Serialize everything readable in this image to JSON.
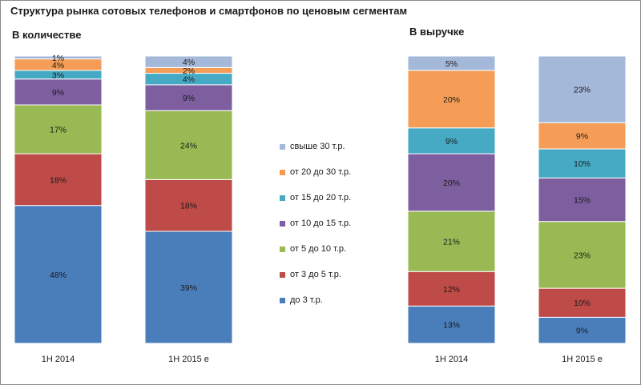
{
  "title": "Структура рынка сотовых телефонов и смартфонов по ценовым сегментам",
  "chart_data": {
    "type": "bar",
    "stacked": true,
    "segments": [
      {
        "name": "до 3 т.р.",
        "color": "#4a7ebb"
      },
      {
        "name": "от 3 до 5 т.р.",
        "color": "#be4b48"
      },
      {
        "name": "от 5 до 10 т.р.",
        "color": "#98b954"
      },
      {
        "name": "от 10 до 15 т.р.",
        "color": "#7d5fa0"
      },
      {
        "name": "от 15 до 20 т.р.",
        "color": "#46aac5"
      },
      {
        "name": "от 20 до 30 т.р.",
        "color": "#f59d56"
      },
      {
        "name": "свыше 30 т.р.",
        "color": "#a4b8d9"
      }
    ],
    "panels": [
      {
        "subtitle": "В количестве",
        "categories": [
          "1H 2014",
          "1H 2015 e"
        ],
        "series": [
          {
            "name": "до 3 т.р.",
            "values": [
              48,
              39
            ],
            "labels": [
              "48%",
              "39%"
            ]
          },
          {
            "name": "от 3 до 5 т.р.",
            "values": [
              18,
              18
            ],
            "labels": [
              "18%",
              "18%"
            ]
          },
          {
            "name": "от 5 до 10 т.р.",
            "values": [
              17,
              24
            ],
            "labels": [
              "17%",
              "24%"
            ]
          },
          {
            "name": "от 10 до 15 т.р.",
            "values": [
              9,
              9
            ],
            "labels": [
              "9%",
              "9%"
            ]
          },
          {
            "name": "от 15 до 20 т.р.",
            "values": [
              3,
              4
            ],
            "labels": [
              "3%",
              "4%"
            ]
          },
          {
            "name": "от 20 до 30 т.р.",
            "values": [
              4,
              2
            ],
            "labels": [
              "4%",
              "2%"
            ]
          },
          {
            "name": "свыше 30 т.р.",
            "values": [
              1,
              4
            ],
            "labels": [
              "1%",
              "4%"
            ]
          }
        ]
      },
      {
        "subtitle": "В выручке",
        "categories": [
          "1H 2014",
          "1H 2015 e"
        ],
        "series": [
          {
            "name": "до 3 т.р.",
            "values": [
              13,
              9
            ],
            "labels": [
              "13%",
              "9%"
            ]
          },
          {
            "name": "от 3 до 5 т.р.",
            "values": [
              12,
              10
            ],
            "labels": [
              "12%",
              "10%"
            ]
          },
          {
            "name": "от 5 до 10 т.р.",
            "values": [
              21,
              23
            ],
            "labels": [
              "21%",
              "23%"
            ]
          },
          {
            "name": "от 10 до 15 т.р.",
            "values": [
              20,
              15
            ],
            "labels": [
              "20%",
              "15%"
            ]
          },
          {
            "name": "от 15 до 20 т.р.",
            "values": [
              9,
              10
            ],
            "labels": [
              "9%",
              "10%"
            ]
          },
          {
            "name": "от 20 до 30 т.р.",
            "values": [
              20,
              9
            ],
            "labels": [
              "20%",
              "9%"
            ]
          },
          {
            "name": "свыше 30 т.р.",
            "values": [
              5,
              23
            ],
            "labels": [
              "5%",
              "23%"
            ]
          }
        ]
      }
    ],
    "legend_order": [
      "свыше 30 т.р.",
      "от 20 до 30 т.р.",
      "от 15 до 20 т.р.",
      "от 10 до 15 т.р.",
      "от 5 до 10 т.р.",
      "от 3 до 5 т.р.",
      "до 3 т.р."
    ],
    "legend_position": "center"
  }
}
